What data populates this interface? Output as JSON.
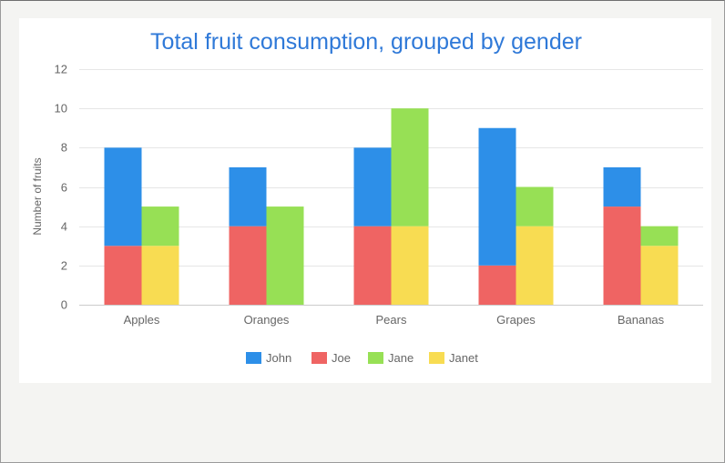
{
  "chart_data": {
    "type": "bar",
    "stacked": true,
    "grouped_by": "gender",
    "title": "Total fruit consumption, grouped by gender",
    "xlabel": "",
    "ylabel": "Number of fruits",
    "ylim": [
      0,
      12
    ],
    "yticks": [
      0,
      2,
      4,
      6,
      8,
      10,
      12
    ],
    "grid": true,
    "legend_position": "bottom",
    "categories": [
      "Apples",
      "Oranges",
      "Pears",
      "Grapes",
      "Bananas"
    ],
    "series": [
      {
        "name": "John",
        "stack": "male",
        "color": "#2d8fe8",
        "values": [
          5,
          3,
          4,
          7,
          2
        ]
      },
      {
        "name": "Joe",
        "stack": "male",
        "color": "#ef6463",
        "values": [
          3,
          4,
          4,
          2,
          5
        ]
      },
      {
        "name": "Jane",
        "stack": "female",
        "color": "#97e055",
        "values": [
          2,
          5,
          6,
          2,
          1
        ]
      },
      {
        "name": "Janet",
        "stack": "female",
        "color": "#f8dc52",
        "values": [
          3,
          0,
          4,
          4,
          3
        ]
      }
    ]
  }
}
